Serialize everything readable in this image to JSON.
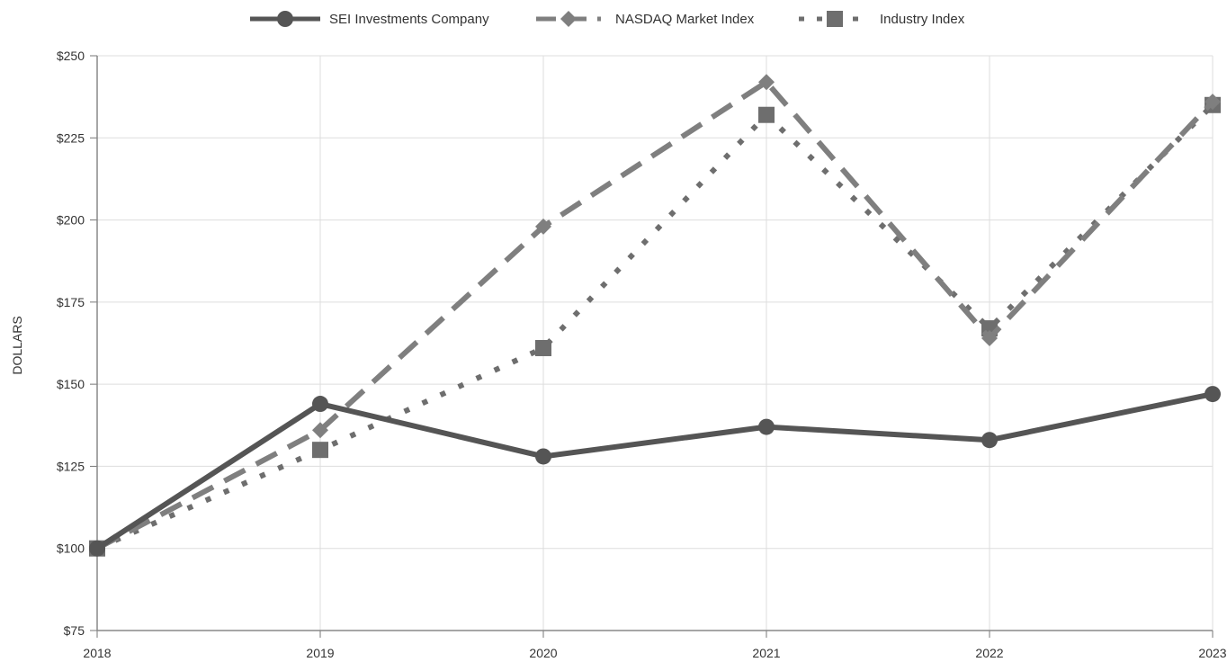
{
  "chart_data": {
    "type": "line",
    "title": "",
    "xlabel": "",
    "ylabel": "DOLLARS",
    "x": [
      "2018",
      "2019",
      "2020",
      "2021",
      "2022",
      "2023"
    ],
    "ylim": [
      75,
      250
    ],
    "yticks": [
      75,
      100,
      125,
      150,
      175,
      200,
      225,
      250
    ],
    "ytick_labels": [
      "$75",
      "$100",
      "$125",
      "$150",
      "$175",
      "$200",
      "$225",
      "$250"
    ],
    "grid": true,
    "legend_position": "top-center",
    "series": [
      {
        "name": "SEI Investments Company",
        "values": [
          100,
          144,
          128,
          137,
          133,
          147
        ],
        "color": "#555555",
        "line_style": "solid",
        "marker": "circle"
      },
      {
        "name": "NASDAQ Market Index",
        "values": [
          100,
          136,
          198,
          242,
          164,
          236
        ],
        "color": "#7f7f7f",
        "line_style": "dashed",
        "marker": "diamond"
      },
      {
        "name": "Industry Index",
        "values": [
          100,
          130,
          161,
          232,
          167,
          235
        ],
        "color": "#6e6e6e",
        "line_style": "dotted",
        "marker": "square"
      }
    ]
  }
}
